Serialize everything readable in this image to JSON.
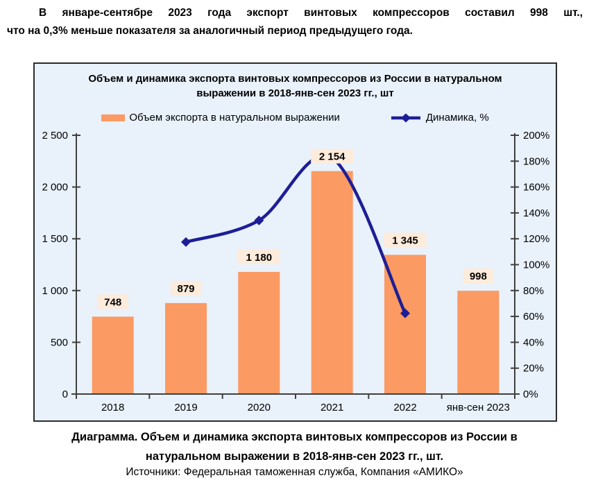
{
  "intro": {
    "lines": [
      "В январе-сентябре 2023 года экспорт винтовых компрессоров составил 998 шт.,",
      "что на 0,3% меньше показателя за аналогичный период предыдущего года."
    ]
  },
  "chart_data": {
    "type": "bar",
    "title": "Объем и динамика экспорта винтовых компрессоров из России в натуральном выражении в 2018-янв-сен 2023 гг., шт",
    "categories": [
      "2018",
      "2019",
      "2020",
      "2021",
      "2022",
      "янв-сен 2023"
    ],
    "series": [
      {
        "name": "Объем экспорта в натуральном выражении",
        "type": "bar",
        "axis": "left",
        "color": "#FB9A63",
        "label_bg": "#FDEBDB",
        "values": [
          748,
          879,
          1180,
          2154,
          1345,
          998
        ],
        "data_labels": [
          "748",
          "879",
          "1 180",
          "2 154",
          "1 345",
          "998"
        ]
      },
      {
        "name": "Динамика, %",
        "type": "line",
        "axis": "right",
        "color": "#1E1E96",
        "values": [
          null,
          117.5,
          134.2,
          182.5,
          62.4,
          null
        ]
      }
    ],
    "left_axis": {
      "min": 0,
      "max": 2500,
      "step": 500,
      "tick_labels": [
        "0",
        "500",
        "1 000",
        "1 500",
        "2 000",
        "2 500"
      ]
    },
    "right_axis": {
      "min": 0,
      "max": 200,
      "step": 20,
      "tick_labels": [
        "0%",
        "20%",
        "40%",
        "60%",
        "80%",
        "100%",
        "120%",
        "140%",
        "160%",
        "180%",
        "200%"
      ]
    },
    "grid": false,
    "legend_position": "top",
    "plot_bg": "#E9F1FB",
    "axis_color": "#3F3F3F",
    "text_color": "#000000"
  },
  "caption": {
    "text": "Диаграмма. Объем и динамика экспорта винтовых компрессоров из России в натуральном выражении в 2018-янв-сен 2023 гг., шт.",
    "sources": "Источники: Федеральная таможенная служба, Компания «АМИКО»"
  }
}
